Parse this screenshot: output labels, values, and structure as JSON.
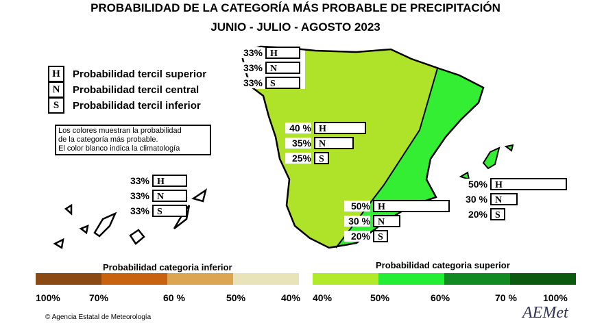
{
  "title": {
    "line1": "PROBABILIDAD DE LA  CATEGORÍA MÁS PROBABLE DE PRECIPITACIÓN",
    "line2": "JUNIO - JULIO - AGOSTO 2023"
  },
  "legend": [
    {
      "letter": "H",
      "text": "Probabilidad  tercil superior"
    },
    {
      "letter": "N",
      "text": "Probabilidad  tercil central"
    },
    {
      "letter": "S",
      "text": "Probabilidad  tercil inferior"
    }
  ],
  "note": [
    "Los colores muestran la probabilidad",
    "de la categoría más probable.",
    "El color blanco indica la climatología"
  ],
  "regions": [
    {
      "name": "galicia",
      "color": "#ffffff",
      "values": [
        {
          "letter": "H",
          "pct": "33%",
          "p": 33
        },
        {
          "letter": "N",
          "pct": "33%",
          "p": 33
        },
        {
          "letter": "S",
          "pct": "33%",
          "p": 33
        }
      ]
    },
    {
      "name": "oeste",
      "color": "#aee32a",
      "values": [
        {
          "letter": "H",
          "pct": "40 %",
          "p": 40
        },
        {
          "letter": "N",
          "pct": "35%",
          "p": 35
        },
        {
          "letter": "S",
          "pct": "25%",
          "p": 25
        }
      ]
    },
    {
      "name": "este",
      "color": "#33ee33",
      "values": [
        {
          "letter": "H",
          "pct": "50%",
          "p": 50
        },
        {
          "letter": "N",
          "pct": "30 %",
          "p": 30
        },
        {
          "letter": "S",
          "pct": "20%",
          "p": 20
        }
      ]
    },
    {
      "name": "baleares",
      "color": "#33ee33",
      "values": [
        {
          "letter": "H",
          "pct": "50%",
          "p": 50
        },
        {
          "letter": "N",
          "pct": "30 %",
          "p": 30
        },
        {
          "letter": "S",
          "pct": "20%",
          "p": 20
        }
      ]
    },
    {
      "name": "canarias",
      "color": "#ffffff",
      "values": [
        {
          "letter": "H",
          "pct": "33%",
          "p": 33
        },
        {
          "letter": "N",
          "pct": "33%",
          "p": 33
        },
        {
          "letter": "S",
          "pct": "33%",
          "p": 33
        }
      ]
    }
  ],
  "scale_inferior": {
    "label": "Probabilidad categoria inferior",
    "colors": [
      "#8b4a14",
      "#c8620f",
      "#dca552",
      "#e8e3b8"
    ],
    "ticks": [
      "100%",
      "70%",
      "60 %",
      "50%",
      "40%"
    ]
  },
  "scale_superior": {
    "label": "Probabilidad categoria superior",
    "colors": [
      "#b2ea2a",
      "#22ee33",
      "#118a22",
      "#0b5a10"
    ],
    "ticks": [
      "40%",
      "50%",
      "60%",
      "70 %",
      "100%"
    ]
  },
  "footer": {
    "copyright": "© Agencia Estatal de Meteorología",
    "logo": "AEMet"
  }
}
